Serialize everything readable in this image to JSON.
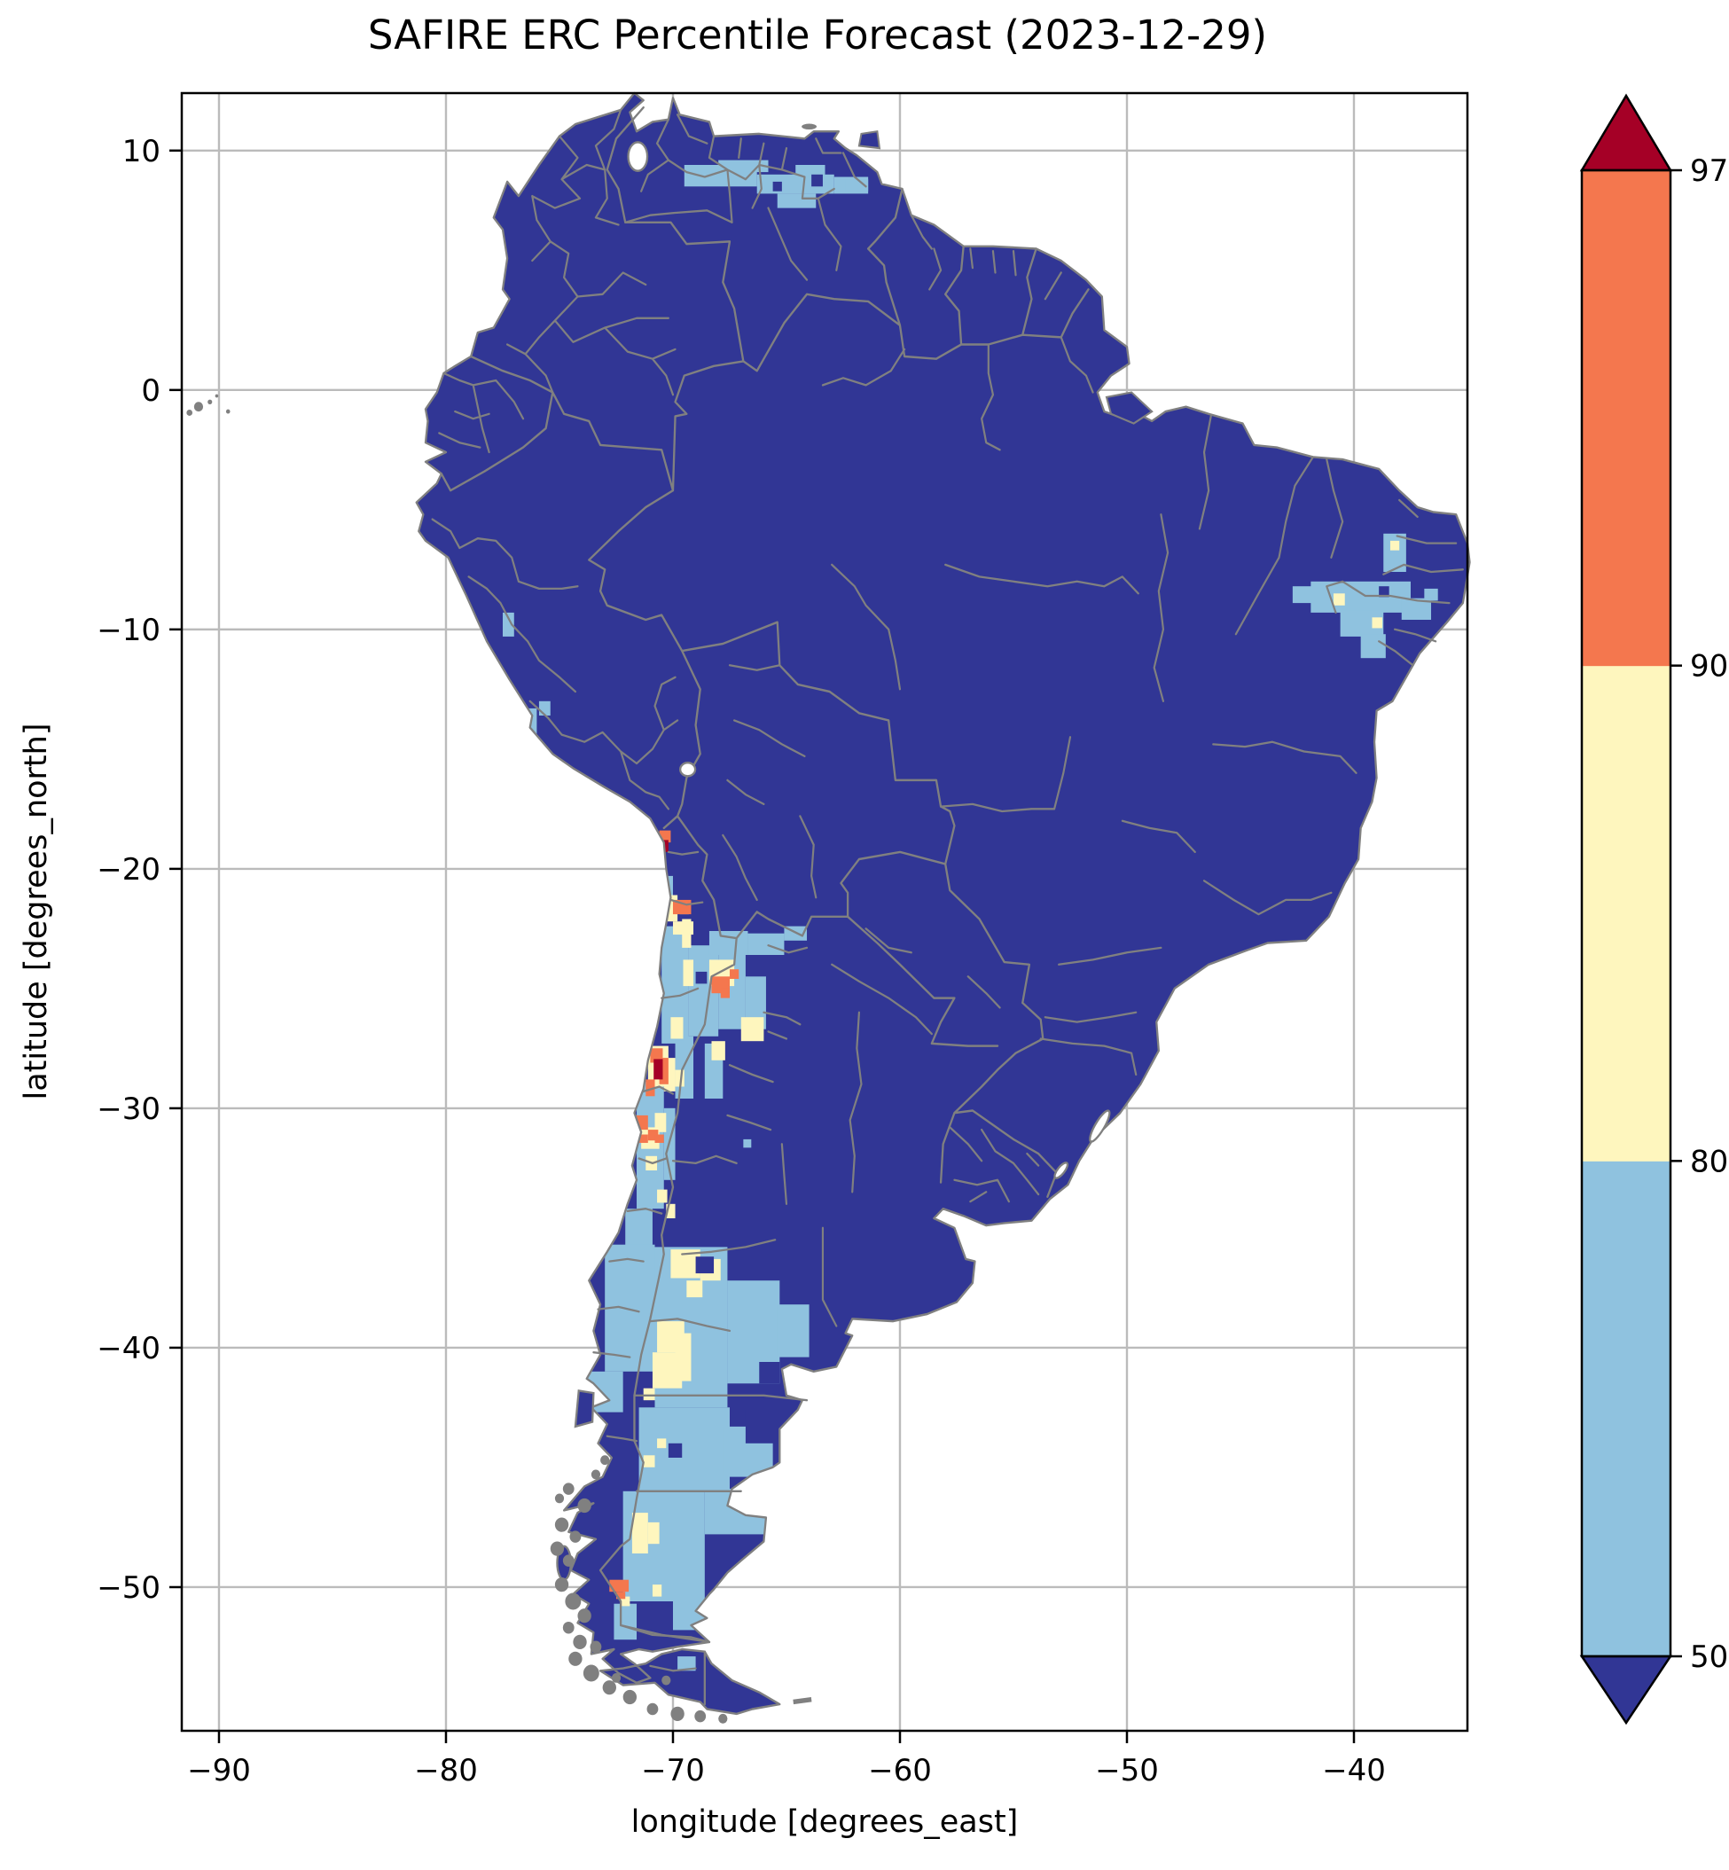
{
  "title": "SAFIRE ERC Percentile Forecast (2023-12-29)",
  "axes": {
    "xlabel": "longitude [degrees_east]",
    "ylabel": "latitude [degrees_north]",
    "x_ticks": [
      {
        "v": -90,
        "label": "−90"
      },
      {
        "v": -80,
        "label": "−80"
      },
      {
        "v": -70,
        "label": "−70"
      },
      {
        "v": -60,
        "label": "−60"
      },
      {
        "v": -50,
        "label": "−50"
      },
      {
        "v": -40,
        "label": "−40"
      }
    ],
    "y_ticks": [
      {
        "v": 10,
        "label": "10"
      },
      {
        "v": 0,
        "label": "0"
      },
      {
        "v": -10,
        "label": "−10"
      },
      {
        "v": -20,
        "label": "−20"
      },
      {
        "v": -30,
        "label": "−30"
      },
      {
        "v": -40,
        "label": "−40"
      },
      {
        "v": -50,
        "label": "−50"
      }
    ],
    "lon_range": [
      -91.64,
      -35.0
    ],
    "lat_range": [
      -56.0,
      12.4
    ],
    "grid": true
  },
  "colorbar": {
    "orientation": "vertical",
    "levels": [
      50,
      80,
      90,
      97
    ],
    "tick_labels": [
      "50",
      "80",
      "90",
      "97"
    ],
    "segment_colors": [
      "#8FC2DF",
      "#FEF6BE",
      "#F4774E"
    ],
    "under_color": "#313695",
    "over_color": "#A50026",
    "extend": "both"
  },
  "style_colors": {
    "land": "#313695",
    "boundaries": "#808080",
    "gridlines": "#BBBBBB",
    "background": "#FFFFFF"
  },
  "chart_data": {
    "type": "heatmap",
    "subtype": "geographic ERC percentile raster over South America with admin-1 boundaries",
    "title": "SAFIRE ERC Percentile Forecast (2023-12-29)",
    "xlabel": "longitude [degrees_east]",
    "ylabel": "latitude [degrees_north]",
    "xlim": [
      -91.64,
      -35.0
    ],
    "ylim": [
      -56.0,
      12.4
    ],
    "legend_position": "right colorbar",
    "levels": [
      50,
      80,
      90,
      97
    ],
    "notable_areas": [
      "Most of the continent below the 50th percentile (dark blue)",
      "Northern Venezuela llanos ~7.5–9.5N, 69.5W–61.5W: 50–80 band",
      "Interior NE Brazil ~6S–11S, 42.5W–36.5W: 50–80 band with few 80–90 cells",
      "Small 50–80 spots on coastal Peru near 9.5S and 13.5S",
      "Northern/central Chile and NW Argentina Puna 18.5S–34S: mixed 50–97, isolated >97 cells near 18.8S and 28S",
      "Argentine Patagonia 35.5S–51.5S: broad 50–80 area, 80–90 patches 36S–42S and 47S–49S, 90–97 cells near 50S"
    ],
    "cells": {
      "b50_80": [
        [
          -69.5,
          9.4,
          3.2,
          0.9
        ],
        [
          -68.0,
          9.6,
          2.2,
          0.5
        ],
        [
          -66.3,
          9.0,
          3.4,
          0.8
        ],
        [
          -64.6,
          9.4,
          1.3,
          0.6
        ],
        [
          -62.9,
          8.9,
          1.5,
          0.7
        ],
        [
          -65.4,
          8.2,
          1.7,
          0.6
        ],
        [
          -62.4,
          8.8,
          1.0,
          0.5
        ],
        [
          -41.9,
          -8.0,
          4.4,
          1.3
        ],
        [
          -42.7,
          -8.2,
          0.9,
          0.7
        ],
        [
          -40.6,
          -9.2,
          1.9,
          1.1
        ],
        [
          -39.7,
          -10.2,
          1.1,
          1.0
        ],
        [
          -38.7,
          -6.0,
          1.0,
          1.6
        ],
        [
          -37.9,
          -8.7,
          1.3,
          0.9
        ],
        [
          -36.9,
          -8.3,
          0.6,
          0.5
        ],
        [
          -77.5,
          -9.3,
          0.5,
          1.0
        ],
        [
          -76.5,
          -13.3,
          0.5,
          1.2
        ],
        [
          -75.9,
          -13.0,
          0.5,
          0.6
        ],
        [
          -70.4,
          -20.3,
          0.4,
          0.9
        ],
        [
          -70.5,
          -22.4,
          0.6,
          0.9
        ],
        [
          -70.5,
          -22.6,
          1.2,
          4.7
        ],
        [
          -69.3,
          -23.2,
          1.3,
          3.8
        ],
        [
          -68.0,
          -23.5,
          1.2,
          3.2
        ],
        [
          -66.8,
          -24.5,
          0.9,
          2.2
        ],
        [
          -68.4,
          -22.6,
          1.7,
          1.0
        ],
        [
          -66.7,
          -22.7,
          1.6,
          0.9
        ],
        [
          -65.1,
          -22.4,
          1.0,
          0.6
        ],
        [
          -69.9,
          -27.0,
          0.8,
          2.6
        ],
        [
          -68.6,
          -27.3,
          0.8,
          2.3
        ],
        [
          -71.6,
          -28.9,
          1.2,
          5.3
        ],
        [
          -70.4,
          -30.0,
          0.5,
          3.0
        ],
        [
          -66.9,
          -31.3,
          0.35,
          0.35
        ],
        [
          -72.1,
          -34.2,
          1.2,
          1.6
        ],
        [
          -73.0,
          -35.7,
          2.2,
          5.3
        ],
        [
          -70.8,
          -35.8,
          3.2,
          6.7
        ],
        [
          -67.6,
          -37.2,
          2.3,
          4.3
        ],
        [
          -65.4,
          -38.2,
          1.4,
          2.2
        ],
        [
          -73.9,
          -41.0,
          1.7,
          1.7
        ],
        [
          -71.5,
          -42.5,
          4.0,
          3.5
        ],
        [
          -67.8,
          -43.3,
          2.2,
          2.1
        ],
        [
          -72.2,
          -46.0,
          3.6,
          4.6
        ],
        [
          -68.6,
          -45.9,
          2.8,
          1.9
        ],
        [
          -65.9,
          -46.9,
          0.6,
          1.0
        ],
        [
          -70.0,
          -50.6,
          1.8,
          1.2
        ],
        [
          -72.6,
          -50.7,
          1.0,
          1.5
        ],
        [
          -69.8,
          -52.9,
          0.8,
          0.6
        ]
      ],
      "b80_90": [
        [
          -40.9,
          -8.5,
          0.5,
          0.5
        ],
        [
          -38.4,
          -6.3,
          0.4,
          0.4
        ],
        [
          -39.2,
          -9.5,
          0.45,
          0.45
        ],
        [
          -70.3,
          -21.1,
          0.5,
          1.1
        ],
        [
          -69.7,
          -21.4,
          0.4,
          0.5
        ],
        [
          -70.0,
          -22.2,
          0.9,
          0.55
        ],
        [
          -69.6,
          -22.1,
          0.4,
          1.2
        ],
        [
          -69.55,
          -23.8,
          0.45,
          1.1
        ],
        [
          -68.4,
          -23.8,
          1.1,
          1.1
        ],
        [
          -67.0,
          -26.2,
          1.0,
          1.0
        ],
        [
          -70.1,
          -26.2,
          0.55,
          0.9
        ],
        [
          -68.3,
          -27.2,
          0.6,
          0.8
        ],
        [
          -71.1,
          -27.4,
          0.9,
          1.7
        ],
        [
          -70.4,
          -27.9,
          0.5,
          1.4
        ],
        [
          -69.9,
          -28.4,
          0.4,
          0.7
        ],
        [
          -71.4,
          -30.8,
          0.8,
          0.9
        ],
        [
          -70.8,
          -30.2,
          0.5,
          0.8
        ],
        [
          -71.2,
          -32.0,
          0.5,
          0.6
        ],
        [
          -70.7,
          -33.4,
          0.45,
          0.55
        ],
        [
          -70.3,
          -34.0,
          0.4,
          0.6
        ],
        [
          -70.1,
          -35.9,
          1.3,
          1.2
        ],
        [
          -68.8,
          -36.3,
          0.9,
          0.9
        ],
        [
          -69.4,
          -37.2,
          0.7,
          0.7
        ],
        [
          -70.7,
          -38.9,
          1.2,
          1.3
        ],
        [
          -70.9,
          -40.2,
          1.3,
          1.5
        ],
        [
          -69.9,
          -39.4,
          0.7,
          2.0
        ],
        [
          -71.3,
          -41.7,
          0.5,
          0.5
        ],
        [
          -71.3,
          -44.5,
          0.5,
          0.5
        ],
        [
          -70.7,
          -43.8,
          0.4,
          0.4
        ],
        [
          -71.8,
          -46.9,
          0.7,
          1.7
        ],
        [
          -71.1,
          -47.3,
          0.5,
          0.9
        ],
        [
          -70.9,
          -49.9,
          0.4,
          0.5
        ],
        [
          -72.3,
          -50.4,
          0.4,
          0.4
        ]
      ],
      "b90_97": [
        [
          -70.6,
          -18.4,
          0.5,
          0.5
        ],
        [
          -70.0,
          -21.3,
          0.8,
          0.6
        ],
        [
          -68.3,
          -24.5,
          0.8,
          0.7
        ],
        [
          -67.5,
          -24.2,
          0.4,
          0.4
        ],
        [
          -67.9,
          -25.0,
          0.4,
          0.4
        ],
        [
          -71.0,
          -27.5,
          0.55,
          0.6
        ],
        [
          -70.6,
          -27.9,
          0.4,
          1.1
        ],
        [
          -71.2,
          -28.8,
          0.4,
          0.7
        ],
        [
          -71.7,
          -30.3,
          0.6,
          0.6
        ],
        [
          -71.1,
          -30.9,
          0.45,
          0.45
        ],
        [
          -71.5,
          -31.1,
          0.4,
          0.35
        ],
        [
          -70.8,
          -31.1,
          0.4,
          0.35
        ],
        [
          -72.8,
          -49.7,
          0.85,
          0.5
        ],
        [
          -72.5,
          -50.2,
          0.4,
          0.3
        ]
      ],
      "p97_plus": [
        [
          -70.55,
          -18.8,
          0.35,
          0.5
        ],
        [
          -70.85,
          -27.95,
          0.4,
          0.85
        ]
      ],
      "under_holes": [
        [
          -66.8,
          -42.6,
          1.5,
          1.4
        ],
        [
          -69.0,
          -36.2,
          0.8,
          0.7
        ],
        [
          -70.2,
          -44.0,
          0.6,
          0.6
        ],
        [
          -66.2,
          -40.6,
          0.9,
          0.9
        ],
        [
          -69.0,
          -24.3,
          0.5,
          0.5
        ],
        [
          -63.9,
          9.0,
          0.5,
          0.5
        ],
        [
          -65.6,
          8.7,
          0.4,
          0.4
        ],
        [
          -38.9,
          -8.2,
          0.45,
          0.45
        ]
      ]
    }
  }
}
